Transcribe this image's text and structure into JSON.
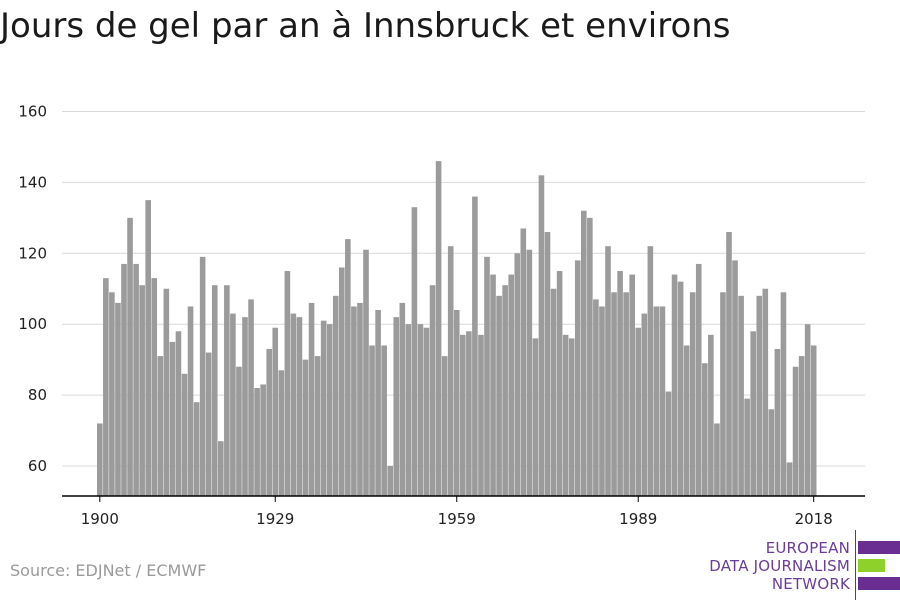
{
  "title": "Jours de gel par an à Innsbruck et environs",
  "source": "Source: EDJNet / ECMWF",
  "logo": {
    "lines": [
      "EUROPEAN",
      "DATA JOURNALISM",
      "NETWORK"
    ],
    "colors": {
      "purple": "#6a2d91",
      "green": "#8fd12b"
    }
  },
  "colors": {
    "bar": "#9b9b9b",
    "grid": "#d9d9d9",
    "axis": "#000000"
  },
  "chart_data": {
    "type": "bar",
    "title": "Jours de gel par an à Innsbruck et environs",
    "xlabel": "",
    "ylabel": "",
    "ylim": [
      51,
      166
    ],
    "yticks": [
      60,
      80,
      100,
      120,
      140,
      160
    ],
    "xticks": [
      1900,
      1929,
      1959,
      1989,
      2018
    ],
    "grid": true,
    "x": [
      1900,
      1901,
      1902,
      1903,
      1904,
      1905,
      1906,
      1907,
      1908,
      1909,
      1910,
      1911,
      1912,
      1913,
      1914,
      1915,
      1916,
      1917,
      1918,
      1919,
      1920,
      1921,
      1922,
      1923,
      1924,
      1925,
      1926,
      1927,
      1928,
      1929,
      1930,
      1931,
      1932,
      1933,
      1934,
      1935,
      1936,
      1937,
      1938,
      1939,
      1940,
      1941,
      1942,
      1943,
      1944,
      1945,
      1946,
      1947,
      1948,
      1949,
      1950,
      1951,
      1952,
      1953,
      1954,
      1955,
      1956,
      1957,
      1958,
      1959,
      1960,
      1961,
      1962,
      1963,
      1964,
      1965,
      1966,
      1967,
      1968,
      1969,
      1970,
      1971,
      1972,
      1973,
      1974,
      1975,
      1976,
      1977,
      1978,
      1979,
      1980,
      1981,
      1982,
      1983,
      1984,
      1985,
      1986,
      1987,
      1988,
      1989,
      1990,
      1991,
      1992,
      1993,
      1994,
      1995,
      1996,
      1997,
      1998,
      1999,
      2000,
      2001,
      2002,
      2003,
      2004,
      2005,
      2006,
      2007,
      2008,
      2009,
      2010,
      2011,
      2012,
      2013,
      2014,
      2015,
      2016,
      2017,
      2018
    ],
    "values": [
      72,
      113,
      109,
      106,
      117,
      130,
      117,
      111,
      135,
      113,
      91,
      110,
      95,
      98,
      86,
      105,
      78,
      119,
      92,
      111,
      67,
      111,
      103,
      88,
      102,
      107,
      82,
      83,
      93,
      99,
      87,
      115,
      103,
      102,
      90,
      106,
      91,
      101,
      100,
      108,
      116,
      124,
      105,
      106,
      121,
      94,
      104,
      94,
      60,
      102,
      106,
      100,
      133,
      100,
      99,
      111,
      146,
      91,
      122,
      104,
      97,
      98,
      136,
      97,
      119,
      114,
      108,
      111,
      114,
      120,
      127,
      121,
      96,
      142,
      126,
      110,
      115,
      97,
      96,
      118,
      132,
      130,
      107,
      105,
      122,
      109,
      115,
      109,
      114,
      99,
      103,
      122,
      105,
      105,
      81,
      114,
      112,
      94,
      109,
      117,
      89,
      97,
      72,
      109,
      126,
      118,
      108,
      79,
      98,
      108,
      110,
      76,
      93,
      109,
      61,
      88,
      91,
      100,
      94
    ]
  }
}
